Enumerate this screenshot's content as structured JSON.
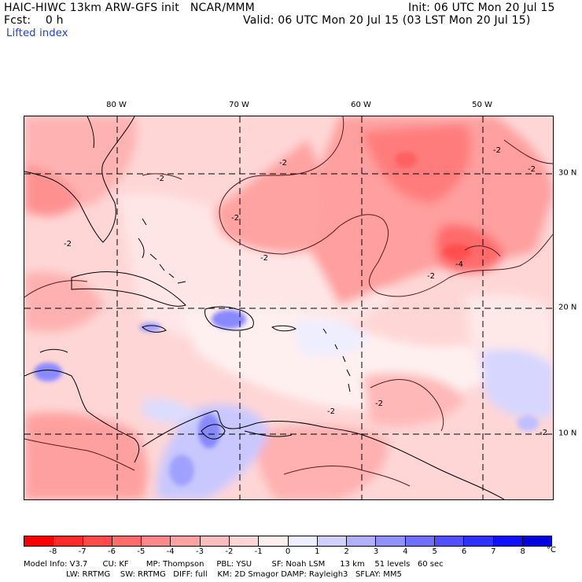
{
  "header": {
    "title_left": "HAIC-HIWC 13km ARW-GFS init   NCAR/MMM",
    "init": "Init: 06 UTC Mon 20 Jul 15",
    "fcst": "Fcst:    0 h",
    "valid": "Valid: 06 UTC Mon 20 Jul 15 (03 LST Mon 20 Jul 15)",
    "field": "Lifted index"
  },
  "map": {
    "longitude_labels": [
      "80 W",
      "70 W",
      "60 W",
      "50 W"
    ],
    "latitude_labels": [
      "30 N",
      "20 N",
      "10 N"
    ],
    "contour_labels": [
      "-2",
      "-2",
      "-2",
      "-2",
      "-2",
      "-2",
      "-2",
      "-2",
      "-2",
      "-4",
      "-2",
      "-2"
    ],
    "colors": {
      "coast": "#000000",
      "grid": "#000000",
      "contour": "#4a2020"
    }
  },
  "colorbar": {
    "colors": [
      "#ff0000",
      "#ff2a2a",
      "#ff4a4a",
      "#ff6b6b",
      "#ff8888",
      "#ffa2a2",
      "#ffbcbc",
      "#ffd6d6",
      "#ffeeee",
      "#eeeeff",
      "#d0d0ff",
      "#b0b0ff",
      "#9090ff",
      "#7070ff",
      "#5050ff",
      "#3030ff",
      "#1010ff",
      "#0000e0"
    ],
    "tick_labels": [
      "-8",
      "-7",
      "-6",
      "-5",
      "-4",
      "-3",
      "-2",
      "-1",
      "0",
      "1",
      "2",
      "3",
      "4",
      "5",
      "6",
      "7",
      "8"
    ],
    "unit": "°C"
  },
  "footer": {
    "line1": "Model Info: V3.7      CU: KF       MP: Thompson     PBL: YSU        SF: Noah LSM      13 km    51 levels   60 sec",
    "line2": "                 LW: RRTMG    SW: RRTMG   DIFF: full    KM: 2D Smagor DAMP: Rayleigh3   SFLAY: MM5"
  }
}
